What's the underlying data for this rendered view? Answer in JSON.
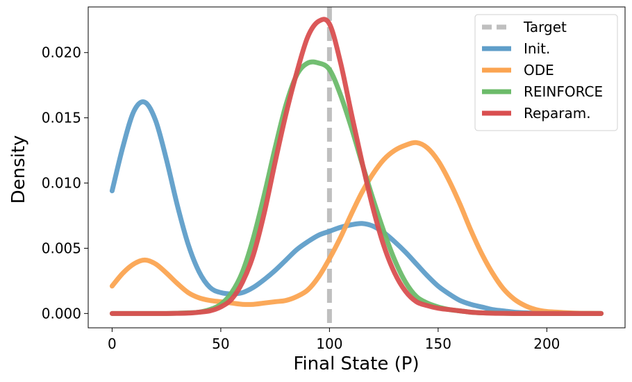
{
  "chart_data": {
    "type": "line",
    "title": "",
    "xlabel": "Final State (P)",
    "ylabel": "Density",
    "xlim": [
      -11,
      236
    ],
    "ylim": [
      -0.0011,
      0.0235
    ],
    "xticks": [
      0,
      50,
      100,
      150,
      200
    ],
    "xtick_labels": [
      "0",
      "50",
      "100",
      "150",
      "200"
    ],
    "yticks": [
      0.0,
      0.005,
      0.01,
      0.015,
      0.02
    ],
    "ytick_labels": [
      "0.000",
      "0.005",
      "0.010",
      "0.015",
      "0.020"
    ],
    "grid": false,
    "legend_position": "top-right",
    "target": {
      "name": "Target",
      "x": 100,
      "color": "#bfbfbf",
      "style": "dashed"
    },
    "x": [
      0,
      5,
      10,
      15,
      20,
      25,
      30,
      35,
      40,
      45,
      50,
      55,
      60,
      65,
      70,
      75,
      80,
      85,
      90,
      95,
      100,
      105,
      110,
      115,
      120,
      125,
      130,
      135,
      140,
      145,
      150,
      155,
      160,
      165,
      170,
      175,
      180,
      185,
      190,
      195,
      200,
      205,
      210,
      215,
      220,
      225
    ],
    "series": [
      {
        "name": "Init.",
        "color": "#5f9ec9",
        "values": [
          0.0094,
          0.0128,
          0.0155,
          0.0162,
          0.0148,
          0.0118,
          0.0083,
          0.0053,
          0.0032,
          0.002,
          0.0016,
          0.0015,
          0.0016,
          0.002,
          0.0026,
          0.0033,
          0.0041,
          0.0049,
          0.0055,
          0.006,
          0.0063,
          0.0066,
          0.0068,
          0.0069,
          0.0067,
          0.0062,
          0.0055,
          0.0047,
          0.0038,
          0.0029,
          0.0021,
          0.0015,
          0.001,
          0.0007,
          0.0005,
          0.0003,
          0.0002,
          0.0001,
          5e-05,
          2e-05,
          1e-05,
          0,
          0,
          0,
          0,
          0
        ]
      },
      {
        "name": "ODE",
        "color": "#fba451",
        "values": [
          0.0021,
          0.0031,
          0.0038,
          0.0041,
          0.0038,
          0.0031,
          0.0023,
          0.0016,
          0.0012,
          0.001,
          0.0009,
          0.0008,
          0.0007,
          0.0007,
          0.0008,
          0.0009,
          0.001,
          0.0013,
          0.0018,
          0.0028,
          0.0042,
          0.0058,
          0.0076,
          0.0093,
          0.0107,
          0.0118,
          0.0125,
          0.0129,
          0.0131,
          0.0127,
          0.0117,
          0.0102,
          0.0084,
          0.0064,
          0.0046,
          0.0031,
          0.0019,
          0.0011,
          0.0006,
          0.0003,
          0.00015,
          0.0001,
          5e-05,
          2e-05,
          1e-05,
          0
        ]
      },
      {
        "name": "REINFORCE",
        "color": "#6cbb6a",
        "values": [
          0,
          0,
          0,
          0,
          0,
          0,
          2e-05,
          5e-05,
          0.0001,
          0.0003,
          0.0007,
          0.0016,
          0.0032,
          0.0058,
          0.0091,
          0.0127,
          0.016,
          0.0183,
          0.0192,
          0.0192,
          0.0187,
          0.0168,
          0.0143,
          0.0115,
          0.0088,
          0.0063,
          0.0041,
          0.0024,
          0.0013,
          0.0008,
          0.0005,
          0.0003,
          0.0002,
          0.0001,
          5e-05,
          3e-05,
          1e-05,
          0,
          0,
          0,
          0,
          0,
          0,
          0,
          0,
          0
        ]
      },
      {
        "name": "Reparam.",
        "color": "#d94f50",
        "values": [
          0,
          0,
          0,
          0,
          0,
          0,
          1e-05,
          3e-05,
          0.0001,
          0.0002,
          0.0005,
          0.0011,
          0.0024,
          0.0045,
          0.0077,
          0.0116,
          0.0153,
          0.0185,
          0.0212,
          0.0224,
          0.0222,
          0.0193,
          0.0154,
          0.0116,
          0.0081,
          0.0052,
          0.0031,
          0.0017,
          0.0009,
          0.0006,
          0.0004,
          0.0003,
          0.0002,
          0.0001,
          5e-05,
          2e-05,
          1e-05,
          0,
          0,
          0,
          0,
          0,
          0,
          0,
          0,
          0
        ]
      }
    ]
  }
}
